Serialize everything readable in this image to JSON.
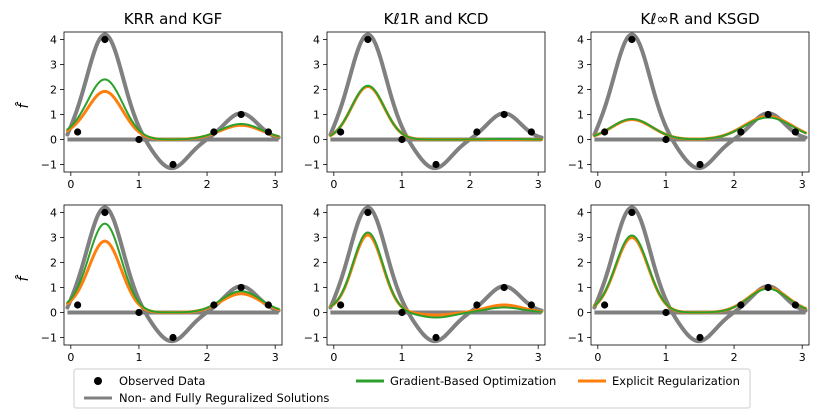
{
  "chart_data": {
    "type": "line",
    "ylabel": "f̂",
    "titles": [
      "KRR and KGF",
      "Kℓ1R and KCD",
      "Kℓ∞R and KSGD"
    ],
    "xlim": [
      -0.1,
      3.1
    ],
    "ylim": [
      -1.3,
      4.3
    ],
    "x_ticks": [
      0,
      1,
      2,
      3
    ],
    "y_ticks": [
      -1,
      0,
      1,
      2,
      3,
      4
    ],
    "observed_data": {
      "x": [
        0.1,
        0.5,
        1.0,
        1.5,
        2.1,
        2.5,
        2.9
      ],
      "y": [
        0.3,
        4.0,
        0.0,
        -1.0,
        0.3,
        1.0,
        0.3
      ]
    },
    "legend": {
      "observed": "Observed Data",
      "reference": "Non- and Fully Reguralized Solutions",
      "gradient": "Gradient-Based Optimization",
      "explicit": "Explicit Regularization"
    },
    "colors": {
      "reference": "#808080",
      "gradient": "#2ca02c",
      "explicit": "#ff7f0e",
      "observed": "#000000"
    },
    "panels": [
      {
        "gradient": {
          "a": 2.4,
          "b": 0.62,
          "c": 0.0,
          "d": 0.15,
          "w": 0.26
        },
        "explicit": {
          "a": 1.92,
          "b": 0.57,
          "c": 0.0,
          "d": 0.15,
          "w": 0.26
        }
      },
      {
        "gradient": {
          "a": 2.15,
          "b": 0.02,
          "c": 0.0,
          "d": 0.0,
          "w": 0.24
        },
        "explicit": {
          "a": 2.12,
          "b": 0.0,
          "c": 0.0,
          "d": 0.0,
          "w": 0.24
        }
      },
      {
        "gradient": {
          "a": 0.82,
          "b": 0.88,
          "c": 0.0,
          "d": 0.0,
          "w": 0.3
        },
        "explicit": {
          "a": 0.8,
          "b": 0.92,
          "c": 0.0,
          "d": 0.0,
          "w": 0.3
        }
      },
      {
        "gradient": {
          "a": 3.55,
          "b": 0.85,
          "c": 0.0,
          "d": 0.15,
          "w": 0.24
        },
        "explicit": {
          "a": 2.85,
          "b": 0.75,
          "c": 0.0,
          "d": 0.15,
          "w": 0.24
        }
      },
      {
        "gradient": {
          "a": 3.2,
          "b": 0.2,
          "c": -0.2,
          "d": 0.1,
          "w": 0.22
        },
        "explicit": {
          "a": 3.1,
          "b": 0.3,
          "c": -0.1,
          "d": 0.1,
          "w": 0.22
        }
      },
      {
        "gradient": {
          "a": 3.08,
          "b": 0.95,
          "c": 0.0,
          "d": 0.05,
          "w": 0.24
        },
        "explicit": {
          "a": 3.0,
          "b": 0.98,
          "c": 0.0,
          "d": 0.05,
          "w": 0.24
        }
      }
    ]
  }
}
